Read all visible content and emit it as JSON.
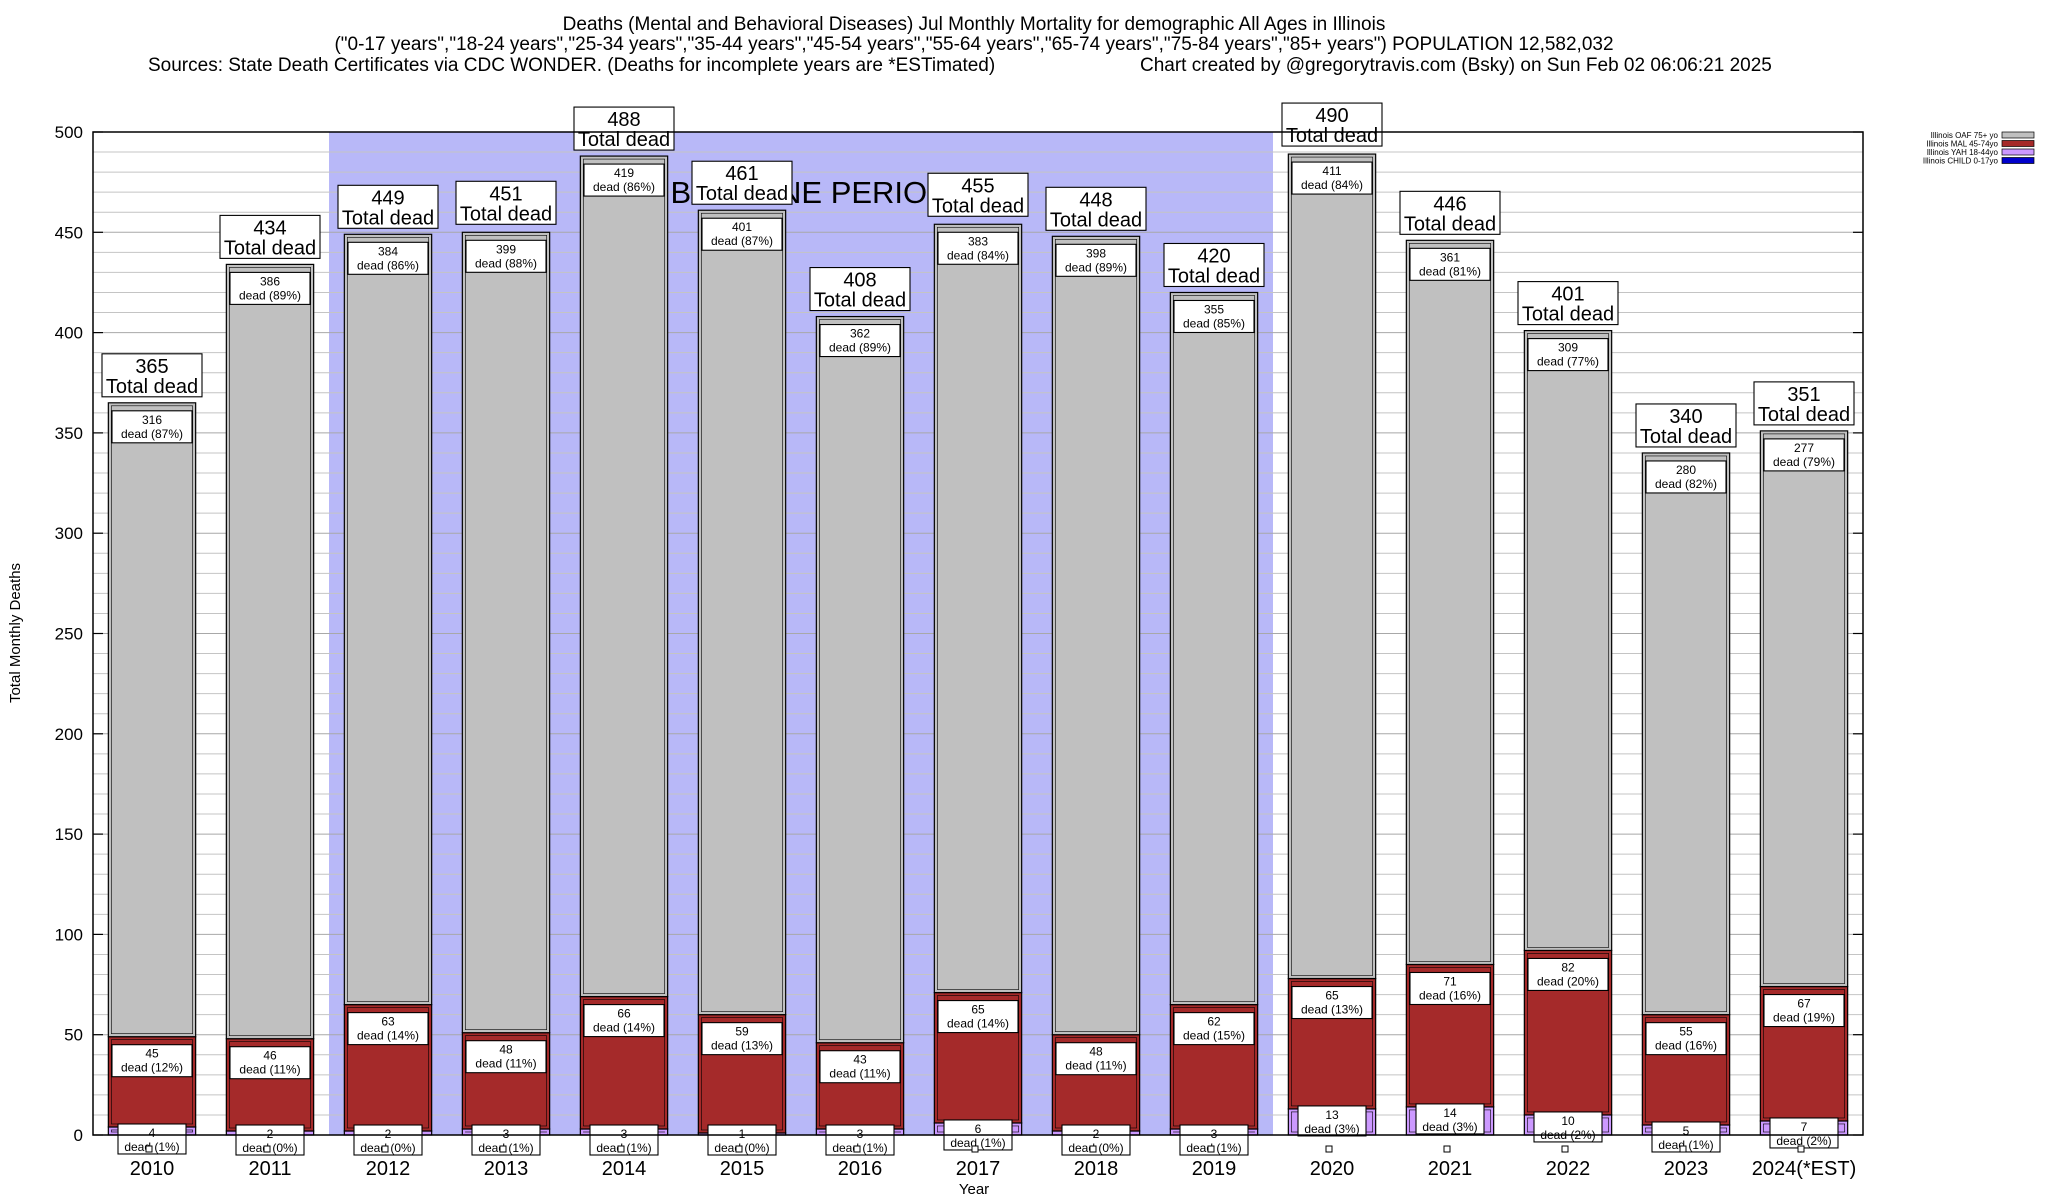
{
  "chart_data": {
    "type": "bar",
    "title": "Deaths (Mental and Behavioral Diseases) Jul Monthly Mortality for demographic All Ages in Illinois",
    "subtitle": "(\"0-17 years\",\"18-24 years\",\"25-34 years\",\"35-44 years\",\"45-54 years\",\"55-64 years\",\"65-74 years\",\"75-84 years\",\"85+ years\") POPULATION 12,582,032",
    "source": "Sources: State Death Certificates via CDC WONDER. (Deaths for incomplete years are *ESTimated)",
    "credit": "Chart created by @gregorytravis.com (Bsky) on Sun Feb 02 06:06:21 2025",
    "xlabel": "Year",
    "ylabel": "Total Monthly Deaths",
    "ylim": [
      0,
      500
    ],
    "yticks": [
      0,
      50,
      100,
      150,
      200,
      250,
      300,
      350,
      400,
      450,
      500
    ],
    "grid": true,
    "legend_position": "top-right",
    "baseline_label": "BASELINE PERIOD",
    "baseline_range": [
      "2012",
      "2019"
    ],
    "total_label": "Total dead",
    "dead_word": "dead",
    "categories": [
      "2010",
      "2011",
      "2012",
      "2013",
      "2014",
      "2015",
      "2016",
      "2017",
      "2018",
      "2019",
      "2020",
      "2021",
      "2022",
      "2023",
      "2024(*EST)"
    ],
    "totals": [
      365,
      434,
      449,
      451,
      488,
      461,
      408,
      455,
      448,
      420,
      490,
      446,
      401,
      340,
      351
    ],
    "series": [
      {
        "name": "Illinois CHILD 0-17yo",
        "color": "#0000cc",
        "values": [
          0,
          0,
          0,
          0,
          0,
          0,
          0,
          0,
          0,
          0,
          0,
          0,
          0,
          0,
          0
        ],
        "labels": [
          "",
          "",
          "",
          "",
          "",
          "",
          "",
          "",
          "",
          "",
          "",
          "",
          "",
          "",
          ""
        ]
      },
      {
        "name": "Illinois YAH 18-44yo",
        "color": "#cc99ff",
        "values": [
          4,
          2,
          2,
          3,
          3,
          1,
          3,
          6,
          2,
          3,
          13,
          14,
          10,
          5,
          7
        ],
        "labels": [
          "(1%)",
          "(0%)",
          "(0%)",
          "(1%)",
          "(1%)",
          "(0%)",
          "(1%)",
          "(1%)",
          "(0%)",
          "(1%)",
          "(3%)",
          "(3%)",
          "(2%)",
          "(1%)",
          "(2%)"
        ]
      },
      {
        "name": "Illinois MAL 45-74yo",
        "color": "#a52a2a",
        "values": [
          45,
          46,
          63,
          48,
          66,
          59,
          43,
          65,
          48,
          62,
          65,
          71,
          82,
          55,
          67
        ],
        "labels": [
          "(12%)",
          "(11%)",
          "(14%)",
          "(11%)",
          "(14%)",
          "(13%)",
          "(11%)",
          "(14%)",
          "(11%)",
          "(15%)",
          "(13%)",
          "(16%)",
          "(20%)",
          "(16%)",
          "(19%)"
        ]
      },
      {
        "name": "Illinois OAF 75+ yo",
        "color": "#c0c0c0",
        "values": [
          316,
          386,
          384,
          399,
          419,
          401,
          362,
          383,
          398,
          355,
          411,
          361,
          309,
          280,
          277
        ],
        "labels": [
          "(87%)",
          "(89%)",
          "(86%)",
          "(88%)",
          "(86%)",
          "(87%)",
          "(89%)",
          "(84%)",
          "(89%)",
          "(85%)",
          "(84%)",
          "(81%)",
          "(77%)",
          "(82%)",
          "(79%)"
        ]
      }
    ]
  }
}
